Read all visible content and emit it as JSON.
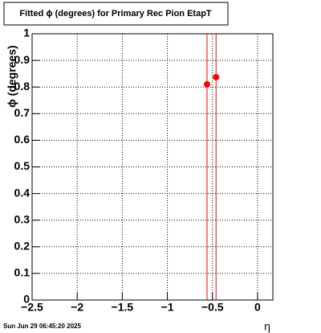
{
  "chart_data": {
    "type": "scatter",
    "title": "Fitted ϕ (degrees) for Primary Rec Pion EtapT",
    "y_label": "ϕ (degrees)",
    "x_label": "η",
    "footer": "Sun Jun 29 06:45:20 2025",
    "x": [
      -0.56,
      -0.46
    ],
    "values": [
      0.81,
      0.837
    ],
    "errors": [
      1.2,
      1.2
    ],
    "color": "#ff0000",
    "xlim": [
      -2.5,
      0.17
    ],
    "ylim": [
      0,
      1
    ],
    "xticks": [
      {
        "value": -2.5,
        "label": "−2.5"
      },
      {
        "value": -2,
        "label": "−2"
      },
      {
        "value": -1.5,
        "label": "−1.5"
      },
      {
        "value": -1,
        "label": "−1"
      },
      {
        "value": -0.5,
        "label": "−0.5"
      },
      0
    ],
    "yticks": [
      0,
      0.1,
      0.2,
      0.3,
      0.4,
      0.5,
      0.6,
      0.7,
      0.8,
      0.9,
      1
    ],
    "grid": true
  }
}
